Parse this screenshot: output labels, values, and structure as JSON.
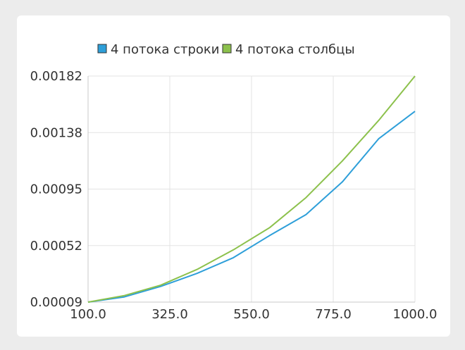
{
  "chart_data": {
    "type": "line",
    "x": [
      100,
      200,
      300,
      400,
      500,
      600,
      700,
      800,
      900,
      1000
    ],
    "x_ticks": [
      "100.0",
      "325.0",
      "550.0",
      "775.0",
      "1000.0"
    ],
    "y_ticks": [
      "0.00009",
      "0.00052",
      "0.00095",
      "0.00138",
      "0.00182"
    ],
    "xlim": [
      100,
      1000
    ],
    "ylim": [
      9e-05,
      0.00182
    ],
    "grid": true,
    "legend_position": "top",
    "series": [
      {
        "name": "4 потока строки",
        "color": "#2e9fd9",
        "values": [
          9e-05,
          0.00013,
          0.00021,
          0.00031,
          0.00043,
          0.0006,
          0.00076,
          0.00101,
          0.00134,
          0.00155
        ]
      },
      {
        "name": "4 потока столбцы",
        "color": "#8cc14c",
        "values": [
          9e-05,
          0.00014,
          0.00022,
          0.00034,
          0.00049,
          0.00066,
          0.00089,
          0.00117,
          0.00148,
          0.00182
        ]
      }
    ]
  }
}
